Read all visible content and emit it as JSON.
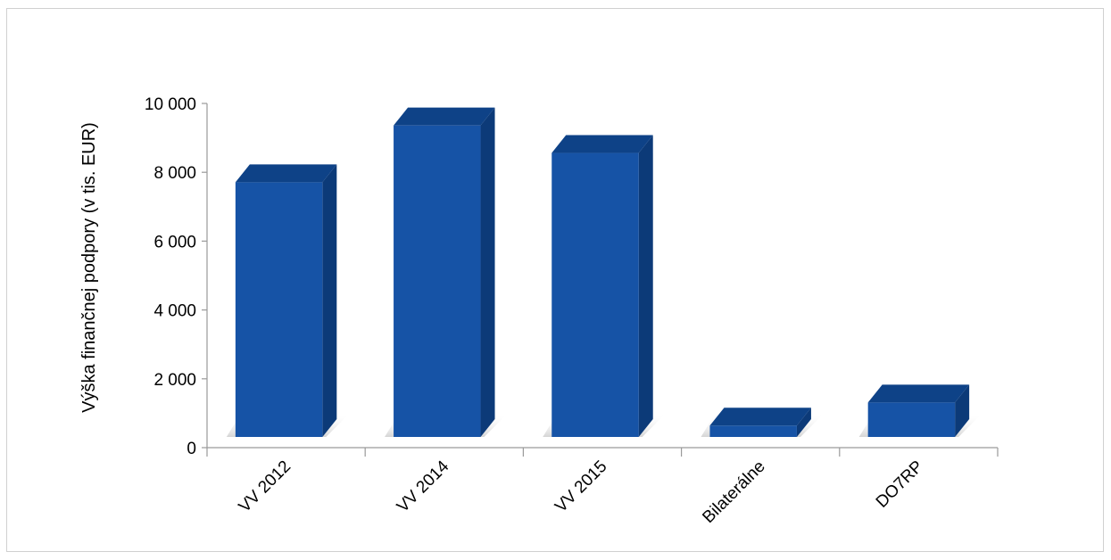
{
  "chart_data": {
    "type": "bar",
    "style": "3d-column",
    "categories": [
      "VV 2012",
      "VV 2014",
      "VV 2015",
      "Bilaterálne",
      "DO7RP"
    ],
    "series": [
      {
        "values": [
          7400,
          9050,
          8250,
          330,
          1000
        ]
      }
    ],
    "ylabel": "Výška finančnej podpory (v tis. EUR)",
    "xlabel": "",
    "title": "",
    "ylim": [
      0,
      10000
    ],
    "yticks": [
      0,
      2000,
      4000,
      6000,
      8000,
      10000
    ],
    "ytick_labels": [
      "0",
      "2 000",
      "4 000",
      "6 000",
      "8 000",
      "10 000"
    ],
    "grid": false,
    "legend": "none",
    "colors": {
      "front": "#1653a6",
      "side": "#0c3a78",
      "top": "#0e4287",
      "axis": "#9a9a9a"
    }
  }
}
